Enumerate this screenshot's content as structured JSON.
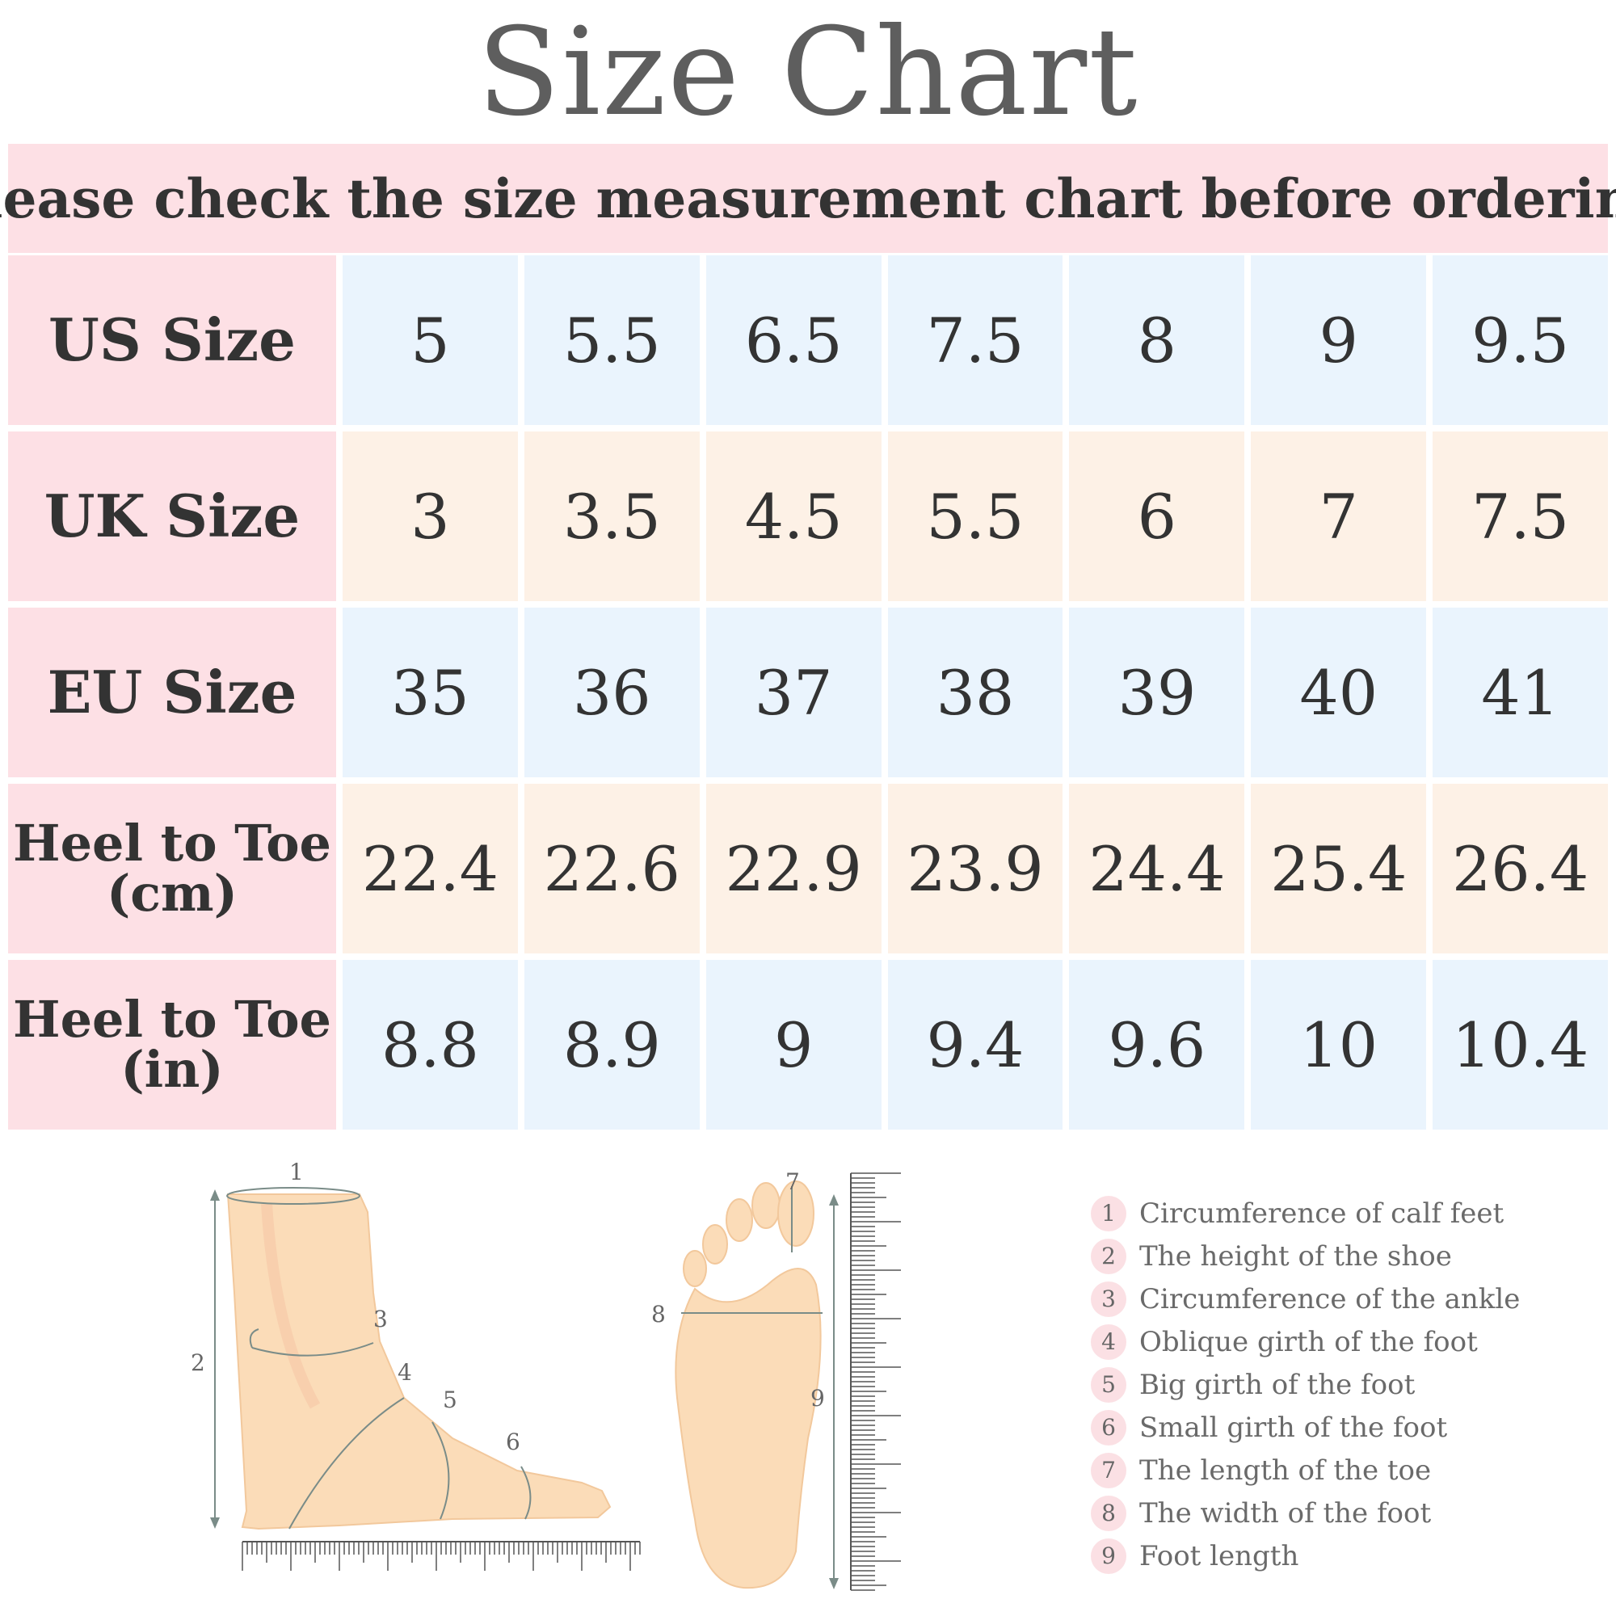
{
  "title": "Size  Chart",
  "subtitle": "please check the size measurement chart before ordering",
  "rows": [
    {
      "label": "US Size",
      "values": [
        "5",
        "5.5",
        "6.5",
        "7.5",
        "8",
        "9",
        "9.5"
      ]
    },
    {
      "label": "UK Size",
      "values": [
        "3",
        "3.5",
        "4.5",
        "5.5",
        "6",
        "7",
        "7.5"
      ]
    },
    {
      "label": "EU Size",
      "values": [
        "35",
        "36",
        "37",
        "38",
        "39",
        "40",
        "41"
      ]
    },
    {
      "label": "Heel to Toe\n(cm)",
      "values": [
        "22.4",
        "22.6",
        "22.9",
        "23.9",
        "24.4",
        "25.4",
        "26.4"
      ]
    },
    {
      "label": "Heel to Toe\n(in)",
      "values": [
        "8.8",
        "8.9",
        "9",
        "9.4",
        "9.6",
        "10",
        "10.4"
      ]
    }
  ],
  "diagram_labels": [
    "1",
    "2",
    "3",
    "4",
    "5",
    "6",
    "7",
    "8",
    "9"
  ],
  "legend": [
    {
      "num": "1",
      "text": "Circumference of calf feet"
    },
    {
      "num": "2",
      "text": "The height of the shoe"
    },
    {
      "num": "3",
      "text": "Circumference of the ankle"
    },
    {
      "num": "4",
      "text": "Oblique girth of the foot"
    },
    {
      "num": "5",
      "text": "Big girth of the foot"
    },
    {
      "num": "6",
      "text": "Small girth of the foot"
    },
    {
      "num": "7",
      "text": "The length of the toe"
    },
    {
      "num": "8",
      "text": "The width of the foot"
    },
    {
      "num": "9",
      "text": "Foot length"
    }
  ],
  "colors": {
    "header_pink": "#fde0e5",
    "row_blue": "#eaf4fd",
    "row_peach": "#fdf1e6",
    "skin": "#fbdcb8"
  }
}
